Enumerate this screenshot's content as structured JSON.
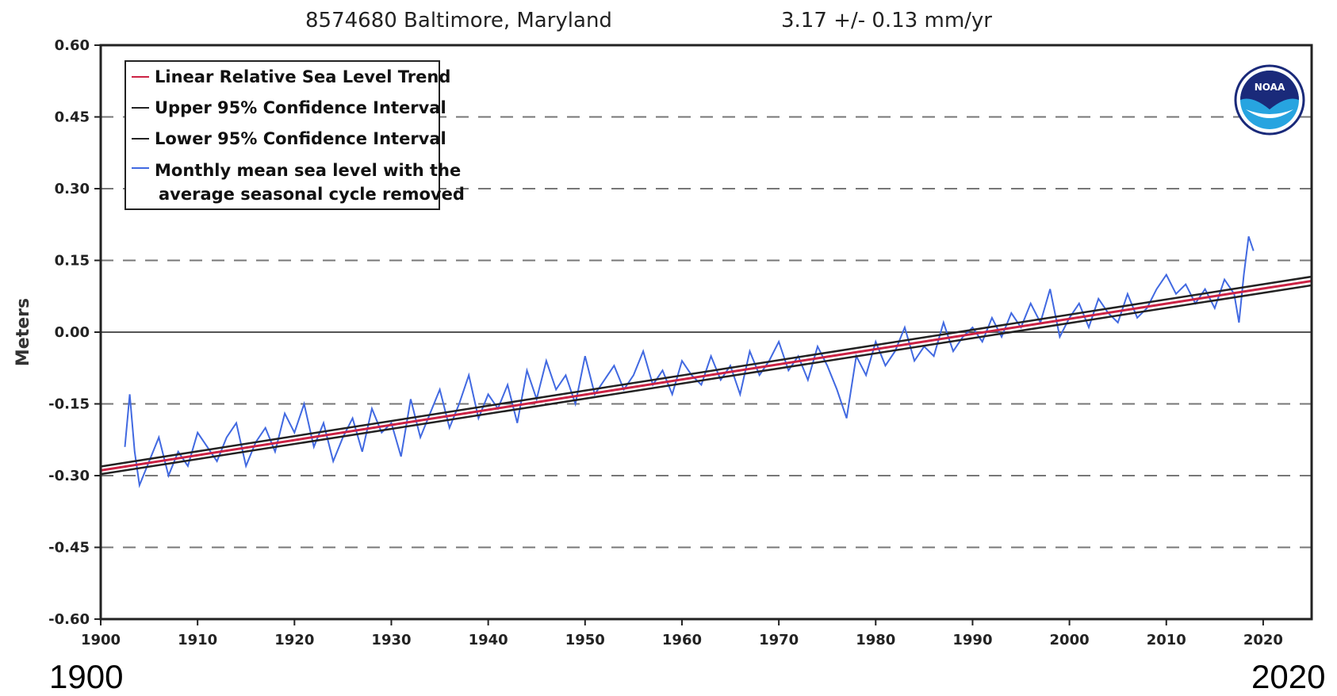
{
  "header": {
    "station": "8574680 Baltimore, Maryland",
    "rate": "3.17 +/-  0.13 mm/yr"
  },
  "footer": {
    "year_left": "1900",
    "year_right": "2020"
  },
  "colors": {
    "monthly": "#4169e1",
    "trend": "#cc2244",
    "confidence": "#222222",
    "gridline": "#777777",
    "zero_line": "#555555",
    "noaa_blue": "#1a2a7a",
    "noaa_light": "#27a4e0"
  },
  "logo": {
    "text": "NOAA",
    "icon": "noaa-logo"
  },
  "chart_data": {
    "type": "line",
    "ylabel": "Meters",
    "xlabel": "",
    "xlim": [
      1900,
      2025
    ],
    "ylim": [
      -0.6,
      0.6
    ],
    "x_ticks": [
      1900,
      1910,
      1920,
      1930,
      1940,
      1950,
      1960,
      1970,
      1980,
      1990,
      2000,
      2010,
      2020
    ],
    "y_ticks": [
      "0.60",
      "0.45",
      "0.30",
      "0.15",
      "0.00",
      "-0.15",
      "-0.30",
      "-0.45",
      "-0.60"
    ],
    "y_tick_values": [
      0.6,
      0.45,
      0.3,
      0.15,
      0.0,
      -0.15,
      -0.3,
      -0.45,
      -0.6
    ],
    "dashed_gridlines": [
      0.45,
      0.3,
      0.15,
      -0.15,
      -0.3,
      -0.45
    ],
    "legend_placement": "top-left",
    "legend": [
      {
        "label": "Linear Relative Sea Level Trend",
        "style": "trend"
      },
      {
        "label": "Upper 95% Confidence Interval",
        "style": "confidence"
      },
      {
        "label": "Lower 95% Confidence Interval",
        "style": "confidence"
      },
      {
        "label_lines": [
          "Monthly mean sea level with the",
          "average seasonal cycle removed"
        ],
        "style": "monthly"
      }
    ],
    "series": [
      {
        "name": "Linear Relative Sea Level Trend",
        "kind": "trend",
        "x": [
          1900,
          2025
        ],
        "y": [
          -0.289,
          0.107
        ]
      },
      {
        "name": "Upper 95% Confidence Interval",
        "kind": "confidence",
        "x": [
          1900,
          2025
        ],
        "y": [
          -0.281,
          0.116
        ]
      },
      {
        "name": "Lower 95% Confidence Interval",
        "kind": "confidence",
        "x": [
          1900,
          2025
        ],
        "y": [
          -0.297,
          0.098
        ]
      },
      {
        "name": "Monthly mean sea level with the average seasonal cycle removed",
        "kind": "monthly",
        "x": [
          1902.5,
          1903,
          1903.5,
          1904,
          1905,
          1906,
          1907,
          1908,
          1909,
          1910,
          1911,
          1912,
          1913,
          1914,
          1915,
          1916,
          1917,
          1918,
          1919,
          1920,
          1921,
          1922,
          1923,
          1924,
          1925,
          1926,
          1927,
          1928,
          1929,
          1930,
          1931,
          1932,
          1933,
          1934,
          1935,
          1936,
          1937,
          1938,
          1939,
          1940,
          1941,
          1942,
          1943,
          1944,
          1945,
          1946,
          1947,
          1948,
          1949,
          1950,
          1951,
          1952,
          1953,
          1954,
          1955,
          1956,
          1957,
          1958,
          1959,
          1960,
          1961,
          1962,
          1963,
          1964,
          1965,
          1966,
          1967,
          1968,
          1969,
          1970,
          1971,
          1972,
          1973,
          1974,
          1975,
          1976,
          1977,
          1978,
          1979,
          1980,
          1981,
          1982,
          1983,
          1984,
          1985,
          1986,
          1987,
          1988,
          1989,
          1990,
          1991,
          1992,
          1993,
          1994,
          1995,
          1996,
          1997,
          1998,
          1999,
          2000,
          2001,
          2002,
          2003,
          2004,
          2005,
          2006,
          2007,
          2008,
          2009,
          2010,
          2011,
          2012,
          2013,
          2014,
          2015,
          2016,
          2017,
          2017.5,
          2018,
          2018.5,
          2019
        ],
        "y": [
          -0.24,
          -0.13,
          -0.25,
          -0.32,
          -0.27,
          -0.22,
          -0.3,
          -0.25,
          -0.28,
          -0.21,
          -0.24,
          -0.27,
          -0.22,
          -0.19,
          -0.28,
          -0.23,
          -0.2,
          -0.25,
          -0.17,
          -0.21,
          -0.15,
          -0.24,
          -0.19,
          -0.27,
          -0.22,
          -0.18,
          -0.25,
          -0.16,
          -0.21,
          -0.19,
          -0.26,
          -0.14,
          -0.22,
          -0.17,
          -0.12,
          -0.2,
          -0.15,
          -0.09,
          -0.18,
          -0.13,
          -0.16,
          -0.11,
          -0.19,
          -0.08,
          -0.14,
          -0.06,
          -0.12,
          -0.09,
          -0.15,
          -0.05,
          -0.13,
          -0.1,
          -0.07,
          -0.12,
          -0.09,
          -0.04,
          -0.11,
          -0.08,
          -0.13,
          -0.06,
          -0.09,
          -0.11,
          -0.05,
          -0.1,
          -0.07,
          -0.13,
          -0.04,
          -0.09,
          -0.06,
          -0.02,
          -0.08,
          -0.05,
          -0.1,
          -0.03,
          -0.07,
          -0.12,
          -0.18,
          -0.05,
          -0.09,
          -0.02,
          -0.07,
          -0.04,
          0.01,
          -0.06,
          -0.03,
          -0.05,
          0.02,
          -0.04,
          -0.01,
          0.01,
          -0.02,
          0.03,
          -0.01,
          0.04,
          0.01,
          0.06,
          0.02,
          0.09,
          -0.01,
          0.03,
          0.06,
          0.01,
          0.07,
          0.04,
          0.02,
          0.08,
          0.03,
          0.05,
          0.09,
          0.12,
          0.08,
          0.1,
          0.06,
          0.09,
          0.05,
          0.11,
          0.08,
          0.02,
          0.12,
          0.2,
          0.17
        ]
      }
    ]
  }
}
